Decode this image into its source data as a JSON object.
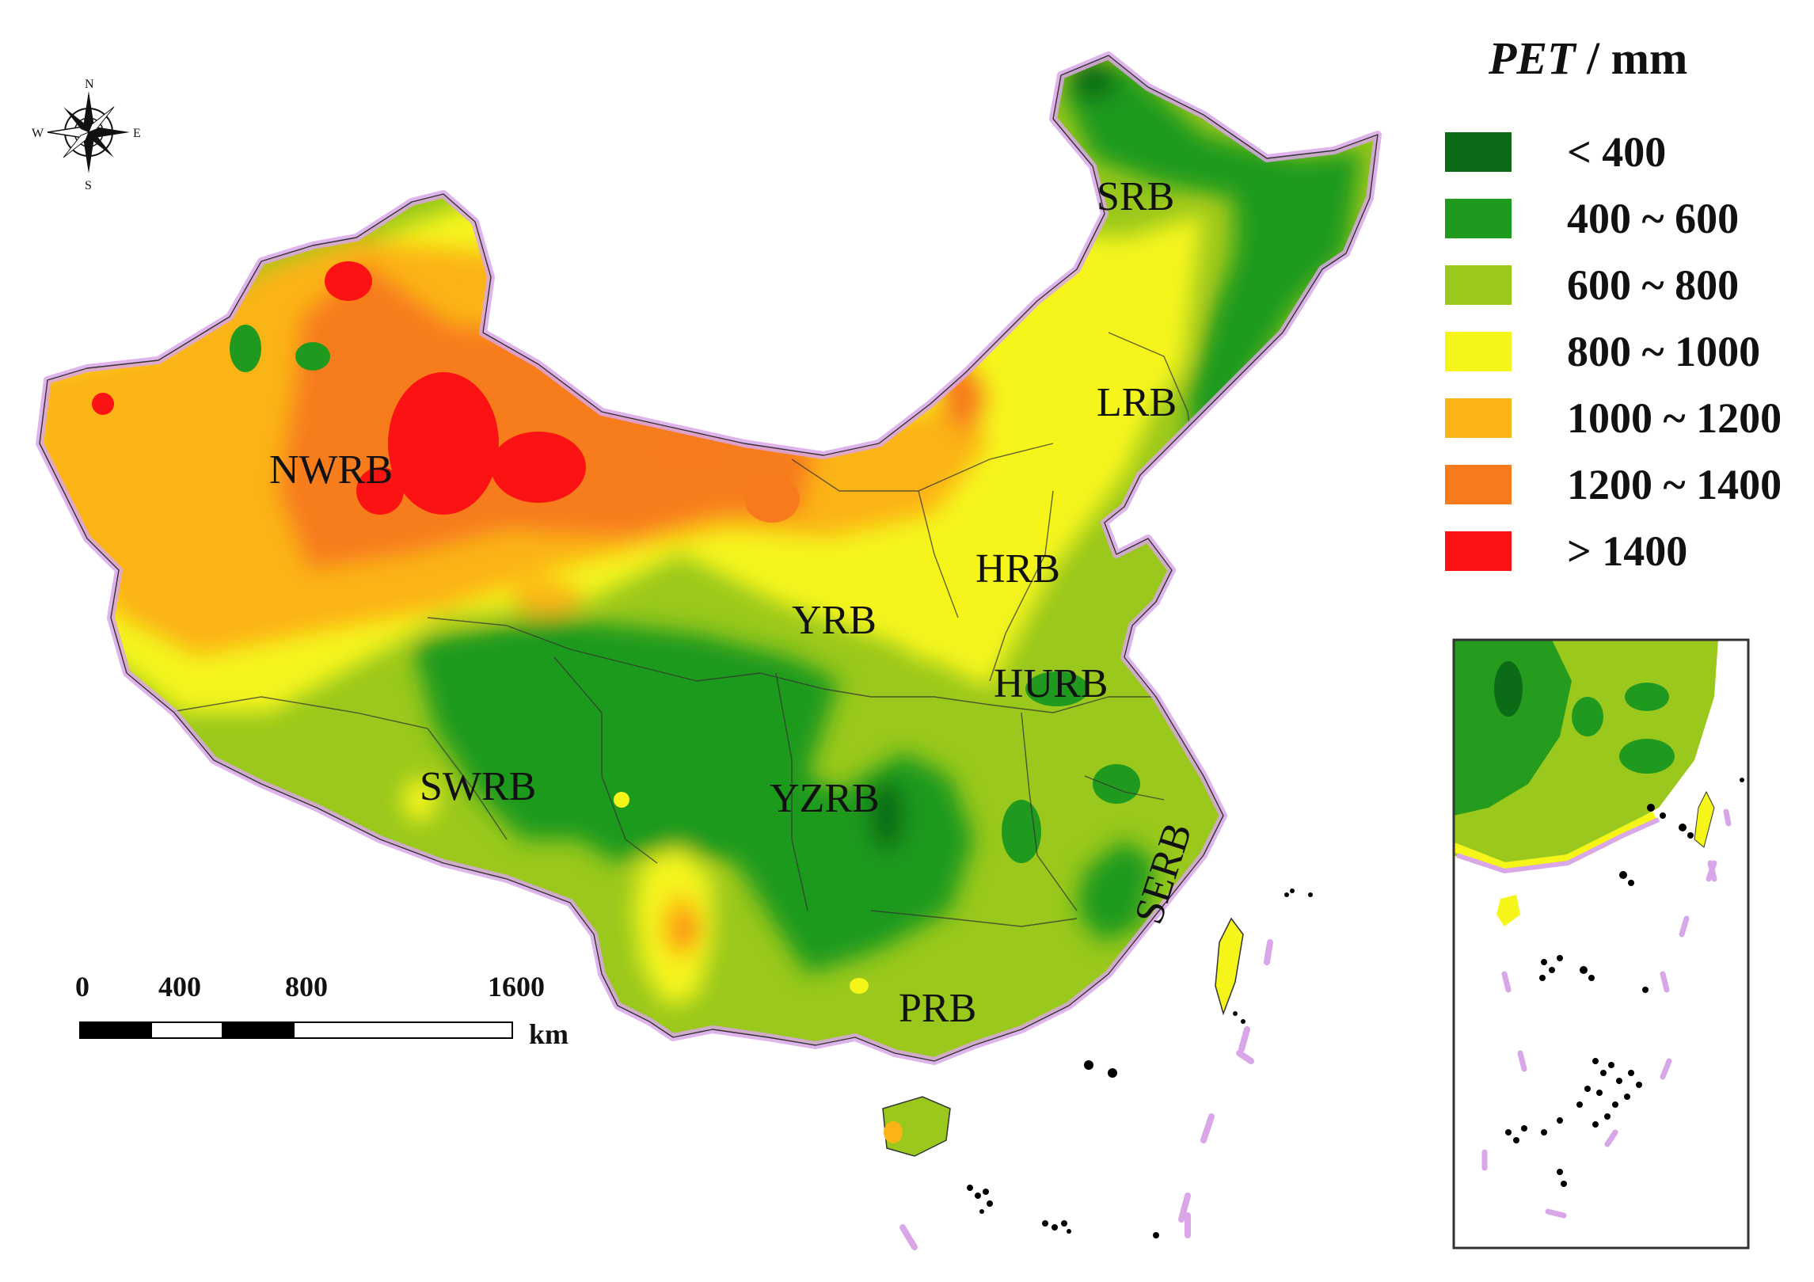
{
  "legend": {
    "title_var": "PET",
    "title_unit": "/ mm",
    "items": [
      {
        "label": "< 400",
        "color": "#0b6b16"
      },
      {
        "label": "400 ~ 600",
        "color": "#1f9a1f"
      },
      {
        "label": "600 ~ 800",
        "color": "#9ac81c"
      },
      {
        "label": "800 ~ 1000",
        "color": "#f5f51a"
      },
      {
        "label": "1000 ~ 1200",
        "color": "#fbb415"
      },
      {
        "label": "1200 ~ 1400",
        "color": "#f77b1d"
      },
      {
        "label": "> 1400",
        "color": "#fb1313"
      }
    ]
  },
  "basins": [
    "SRB",
    "LRB",
    "NWRB",
    "HRB",
    "YRB",
    "HURB",
    "SWRB",
    "YZRB",
    "SERB",
    "PRB"
  ],
  "scale": {
    "ticks": [
      "0",
      "400",
      "800",
      "1600"
    ],
    "unit": "km"
  },
  "compass": {
    "n": "N",
    "s": "S",
    "e": "E",
    "w": "W"
  },
  "colors": {
    "border": "#d9a6e8",
    "water": "#ffffff"
  }
}
